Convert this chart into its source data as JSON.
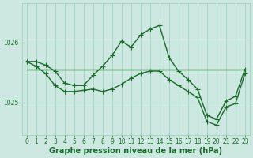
{
  "background_color": "#cce8e0",
  "grid_color": "#99ccbb",
  "line_color": "#1a6b2a",
  "xlim": [
    -0.5,
    23.5
  ],
  "ylim": [
    1024.45,
    1026.65
  ],
  "yticks": [
    1025,
    1026
  ],
  "xticks": [
    0,
    1,
    2,
    3,
    4,
    5,
    6,
    7,
    8,
    9,
    10,
    11,
    12,
    13,
    14,
    15,
    16,
    17,
    18,
    19,
    20,
    21,
    22,
    23
  ],
  "xlabel": "Graphe pression niveau de la mer (hPa)",
  "series": [
    {
      "x": [
        0,
        1,
        2,
        3,
        4,
        5,
        6,
        7,
        8,
        9,
        10,
        11,
        12,
        13,
        14,
        15,
        16,
        17,
        18,
        19,
        20,
        21,
        22,
        23
      ],
      "y": [
        1025.68,
        1025.68,
        1025.62,
        1025.52,
        1025.32,
        1025.28,
        1025.28,
        1025.45,
        1025.6,
        1025.78,
        1026.02,
        1025.92,
        1026.12,
        1026.22,
        1026.28,
        1025.75,
        1025.52,
        1025.38,
        1025.22,
        1024.78,
        1024.72,
        1025.02,
        1025.1,
        1025.55
      ]
    },
    {
      "x": [
        0,
        1,
        2,
        3,
        4,
        5,
        6,
        7,
        8,
        9,
        10,
        11,
        12,
        13,
        14,
        15,
        16,
        17,
        18,
        19,
        20,
        21,
        22,
        23
      ],
      "y": [
        1025.68,
        1025.6,
        1025.48,
        1025.28,
        1025.18,
        1025.18,
        1025.2,
        1025.22,
        1025.18,
        1025.22,
        1025.3,
        1025.4,
        1025.48,
        1025.52,
        1025.52,
        1025.38,
        1025.28,
        1025.18,
        1025.08,
        1024.68,
        1024.62,
        1024.92,
        1024.98,
        1025.48
      ]
    },
    {
      "x": [
        0,
        23
      ],
      "y": [
        1025.55,
        1025.55
      ]
    }
  ],
  "marker": "+",
  "markersize": 4,
  "linewidth": 1.0,
  "tick_fontsize": 5.5,
  "label_fontsize": 7.0
}
